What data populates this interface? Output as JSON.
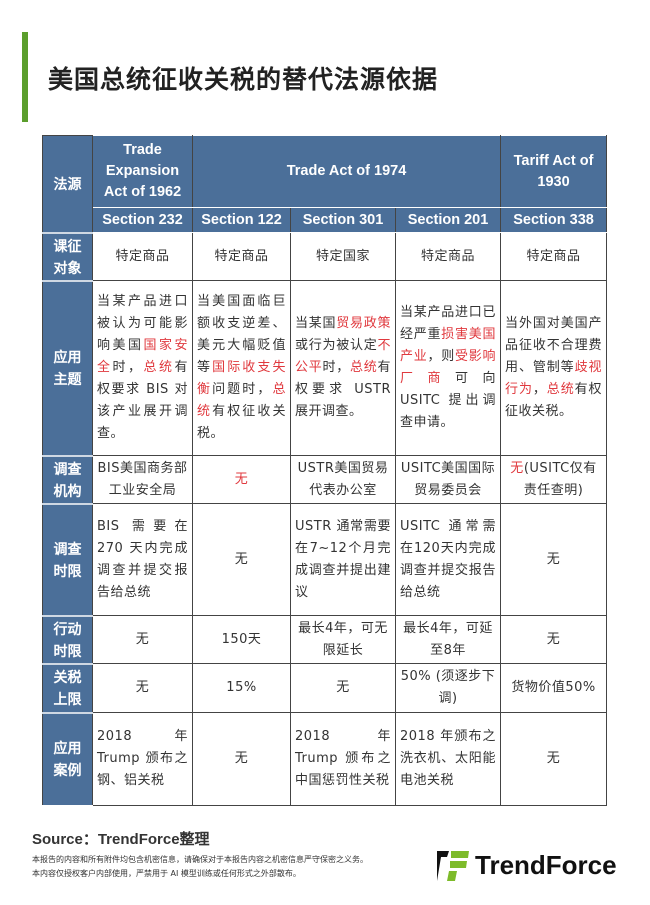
{
  "title": "美国总统征收关税的替代法源依据",
  "table": {
    "corner": "法源",
    "groups": [
      {
        "label": "Trade Expansion Act of 1962",
        "span": 1
      },
      {
        "label": "Trade Act of 1974",
        "span": 3
      },
      {
        "label": "Tariff Act of 1930",
        "span": 1
      }
    ],
    "sections": [
      "Section 232",
      "Section 122",
      "Section 301",
      "Section 201",
      "Section 338"
    ],
    "rows": [
      {
        "header": "课征对象",
        "cells": [
          [
            {
              "t": "特定商品"
            }
          ],
          [
            {
              "t": "特定商品"
            }
          ],
          [
            {
              "t": "特定国家"
            }
          ],
          [
            {
              "t": "特定商品"
            }
          ],
          [
            {
              "t": "特定商品"
            }
          ]
        ],
        "align": "c"
      },
      {
        "header": "应用主题",
        "align": "j",
        "cells": [
          [
            {
              "t": "当某产品进口被认为可能影响美国"
            },
            {
              "t": "国家安全",
              "red": true
            },
            {
              "t": "时，"
            },
            {
              "t": "总统",
              "red": true
            },
            {
              "t": "有权要求 BIS 对该产业展开调查。"
            }
          ],
          [
            {
              "t": "当美国面临巨额收支逆差、美元大幅贬值等"
            },
            {
              "t": "国际收支失衡",
              "red": true
            },
            {
              "t": "问题时，"
            },
            {
              "t": "总统",
              "red": true
            },
            {
              "t": "有权征收关税。"
            }
          ],
          [
            {
              "t": "当某国"
            },
            {
              "t": "贸易政策",
              "red": true
            },
            {
              "t": "或行为被认定"
            },
            {
              "t": "不公平",
              "red": true
            },
            {
              "t": "时，"
            },
            {
              "t": "总统",
              "red": true
            },
            {
              "t": "有权要求 USTR 展开调查。"
            }
          ],
          [
            {
              "t": "当某产品进口已经严重"
            },
            {
              "t": "损害美国产业",
              "red": true
            },
            {
              "t": "，则"
            },
            {
              "t": "受影响厂商",
              "red": true
            },
            {
              "t": "可向 USITC 提出调查申请。"
            }
          ],
          [
            {
              "t": "当外国对美国产品征收不合理费用、管制等"
            },
            {
              "t": "歧视行为",
              "red": true
            },
            {
              "t": "，"
            },
            {
              "t": "总统",
              "red": true
            },
            {
              "t": "有权征收关税。"
            }
          ]
        ]
      },
      {
        "header": "调查机构",
        "align": "c",
        "cells": [
          [
            {
              "t": "BIS美国商务部工业安全局"
            }
          ],
          [
            {
              "t": "无",
              "red": true
            }
          ],
          [
            {
              "t": "USTR美国贸易代表办公室"
            }
          ],
          [
            {
              "t": "USITC美国国际贸易委员会"
            }
          ],
          [
            {
              "t": "无",
              "red": true
            },
            {
              "t": "(USITC仅有责任查明)"
            }
          ]
        ]
      },
      {
        "header": "调查时限",
        "align": "j",
        "cells": [
          [
            {
              "t": "BIS 需要在 270 天内完成调查并提交报告给总统"
            }
          ],
          [
            {
              "t": "无"
            }
          ],
          [
            {
              "t": "USTR 通常需要在7~12个月完成调查并提出建议"
            }
          ],
          [
            {
              "t": "USITC 通常需在120天内完成调查并提交报告给总统"
            }
          ],
          [
            {
              "t": "无"
            }
          ]
        ]
      },
      {
        "header": "行动时限",
        "align": "c",
        "cells": [
          [
            {
              "t": "无"
            }
          ],
          [
            {
              "t": "150天"
            }
          ],
          [
            {
              "t": "最长4年，可无限延长"
            }
          ],
          [
            {
              "t": "最长4年，可延至8年"
            }
          ],
          [
            {
              "t": "无"
            }
          ]
        ]
      },
      {
        "header": "关税上限",
        "align": "c",
        "cells": [
          [
            {
              "t": "无"
            }
          ],
          [
            {
              "t": "15%"
            }
          ],
          [
            {
              "t": "无"
            }
          ],
          [
            {
              "t": "50% (须逐步下调)"
            }
          ],
          [
            {
              "t": "货物价值50%"
            }
          ]
        ]
      },
      {
        "header": "应用案例",
        "align": "j",
        "cells": [
          [
            {
              "t": "2018 年 Trump 颁布之钢、铝关税"
            }
          ],
          [
            {
              "t": "无"
            }
          ],
          [
            {
              "t": "2018 年 Trump 颁布之中国惩罚性关税"
            }
          ],
          [
            {
              "t": "2018 年颁布之洗衣机、太阳能电池关税"
            }
          ],
          [
            {
              "t": "无"
            }
          ]
        ]
      }
    ]
  },
  "source": "Source：TrendForce整理",
  "disclaimer": [
    "本报告的内容和所有附件均包含机密信息，请确保对于本报告内容之机密信息严守保密之义务。",
    "本内容仅授权客户内部使用，严禁用于 AI 模型训练或任何形式之外部散布。"
  ],
  "logo": {
    "text": "TrendForce",
    "colors": {
      "black": "#111111",
      "green": "#7dbb2a"
    }
  },
  "colors": {
    "header": "#4b6f99",
    "accent_red": "#e0393e",
    "title_bar": "#5b9e2c"
  }
}
